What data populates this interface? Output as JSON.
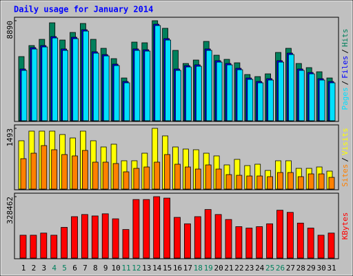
{
  "chart_data": {
    "type": "bar",
    "title": "Daily usage for January 2014",
    "categories": [
      "1",
      "2",
      "3",
      "4",
      "5",
      "6",
      "7",
      "8",
      "9",
      "10",
      "11",
      "12",
      "13",
      "14",
      "15",
      "16",
      "17",
      "18",
      "19",
      "20",
      "21",
      "22",
      "23",
      "24",
      "25",
      "26",
      "27",
      "28",
      "29",
      "30",
      "31"
    ],
    "category_colors": [
      "#000000",
      "#000000",
      "#000000",
      "#00805c",
      "#00805c",
      "#000000",
      "#000000",
      "#000000",
      "#000000",
      "#000000",
      "#00805c",
      "#00805c",
      "#000000",
      "#000000",
      "#000000",
      "#000000",
      "#000000",
      "#00805c",
      "#00805c",
      "#000000",
      "#000000",
      "#000000",
      "#000000",
      "#000000",
      "#00805c",
      "#00805c",
      "#000000",
      "#000000",
      "#000000",
      "#000000",
      "#000000"
    ],
    "legend_separator": "/",
    "panels": [
      {
        "ylim": [
          0,
          8890
        ],
        "yticks": [
          8890
        ],
        "series": [
          {
            "name": "Hits",
            "color": "#00805c",
            "values": [
              5702,
              6682,
              7234,
              8705,
              7173,
              7847,
              8644,
              7234,
              6437,
              5518,
              3801,
              6989,
              6928,
              8890,
              8215,
              6253,
              5088,
              5395,
              7050,
              5824,
              5456,
              5150,
              4107,
              3924,
              4169,
              6069,
              6437,
              5088,
              4721,
              4353,
              3801
            ]
          },
          {
            "name": "Files",
            "color": "#0000ff",
            "values": [
              4600,
              6500,
              6680,
              7480,
              6380,
              7420,
              8090,
              6130,
              5880,
              5030,
              3490,
              6380,
              6310,
              8580,
              7300,
              4600,
              4900,
              4970,
              6380,
              5340,
              5090,
              4660,
              3800,
              3490,
              3740,
              5340,
              6010,
              4600,
              4290,
              3740,
              3490
            ]
          },
          {
            "name": "Pages",
            "color": "#00e0ff",
            "values": [
              4475,
              6375,
              6559,
              7356,
              6253,
              7295,
              7969,
              6007,
              5762,
              4904,
              3372,
              6253,
              6191,
              8459,
              7172,
              4475,
              4781,
              4843,
              6253,
              5211,
              4965,
              4536,
              3678,
              3372,
              3617,
              5211,
              5885,
              4475,
              4168,
              3617,
              3372
            ]
          }
        ]
      },
      {
        "ylim": [
          0,
          1493
        ],
        "yticks": [
          1493
        ],
        "series": [
          {
            "name": "Visits",
            "color": "#ffff00",
            "values": [
              1188,
              1425,
              1425,
              1425,
              1341,
              1256,
              1425,
              1188,
              1035,
              1103,
              696,
              696,
              882,
              1493,
              1307,
              1035,
              984,
              967,
              882,
              815,
              594,
              730,
              577,
              611,
              458,
              696,
              696,
              509,
              509,
              543,
              441
            ]
          },
          {
            "name": "Sites",
            "color": "#ff8000",
            "values": [
              747,
              882,
              1069,
              967,
              849,
              815,
              950,
              662,
              662,
              628,
              424,
              509,
              543,
              662,
              849,
              611,
              543,
              492,
              594,
              492,
              356,
              339,
              322,
              322,
              305,
              407,
              407,
              305,
              373,
              373,
              288
            ]
          }
        ]
      },
      {
        "ylim": [
          0,
          328462
        ],
        "yticks": [
          328462
        ],
        "series": [
          {
            "name": "KBytes",
            "color": "#ff0000",
            "values": [
              122208,
              122208,
              133665,
              122208,
              164217,
              221502,
              232959,
              225321,
              236778,
              210045,
              152760,
              313158,
              313158,
              328462,
              320796,
              217683,
              183312,
              221502,
              259692,
              232959,
              206226,
              168036,
              160398,
              168036,
              183312,
              255873,
              244416,
              187131,
              160398,
              122208,
              133665
            ]
          }
        ]
      }
    ]
  }
}
